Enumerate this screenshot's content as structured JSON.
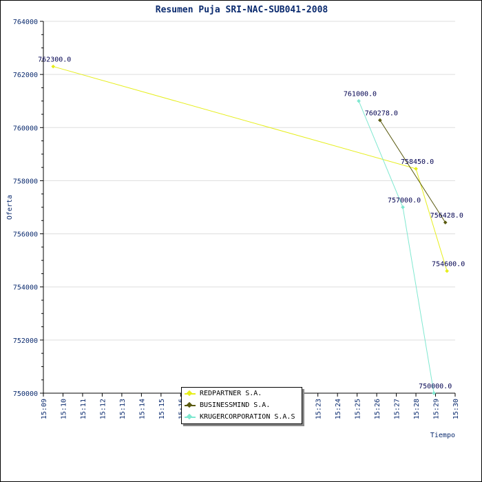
{
  "chart_data": {
    "type": "line",
    "title": "Resumen Puja SRI-NAC-SUB041-2008",
    "xlabel": "Tiempo",
    "ylabel": "Oferta",
    "xlim": [
      "15:09",
      "15:30"
    ],
    "ylim": [
      750000,
      764000
    ],
    "x_ticks": [
      "15:09",
      "15:10",
      "15:11",
      "15:12",
      "15:13",
      "15:14",
      "15:15",
      "15:16",
      "15:17",
      "15:18",
      "15:19",
      "15:20",
      "15:21",
      "15:22",
      "15:23",
      "15:24",
      "15:25",
      "15:26",
      "15:27",
      "15:28",
      "15:29",
      "15:30"
    ],
    "y_ticks": [
      750000,
      752000,
      754000,
      756000,
      758000,
      760000,
      762000,
      764000
    ],
    "grid": true,
    "legend_position": "bottom-center",
    "series": [
      {
        "name": "REDPARTNER S.A.",
        "color": "#e6ee1a",
        "points": [
          {
            "x": "15:09:30",
            "y": 762300,
            "label": "762300.0"
          },
          {
            "x": "15:28:00",
            "y": 758450,
            "label": "758450.0"
          },
          {
            "x": "15:29:35",
            "y": 754600,
            "label": "754600.0"
          }
        ]
      },
      {
        "name": "BUSINESSMIND S.A.",
        "color": "#5a5a10",
        "points": [
          {
            "x": "15:26:10",
            "y": 760278,
            "label": "760278.0"
          },
          {
            "x": "15:29:30",
            "y": 756428,
            "label": "756428.0"
          }
        ]
      },
      {
        "name": "KRUGERCORPORATION S.A.S",
        "color": "#7fe8d0",
        "points": [
          {
            "x": "15:25:05",
            "y": 761000,
            "label": "761000.0"
          },
          {
            "x": "15:27:20",
            "y": 757000,
            "label": "757000.0"
          },
          {
            "x": "15:28:55",
            "y": 750000,
            "label": "750000.0"
          }
        ]
      }
    ]
  }
}
